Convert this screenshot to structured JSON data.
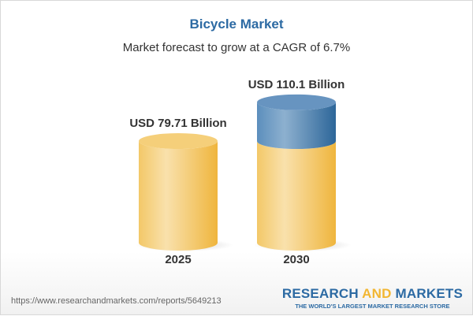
{
  "chart_data": {
    "type": "bar",
    "style": "3d-cylinder",
    "title": "Bicycle Market",
    "subtitle": "Market forecast to grow at a CAGR of 6.7%",
    "categories": [
      "2025",
      "2030"
    ],
    "values": [
      79.71,
      110.1
    ],
    "data_labels": [
      "USD 79.71 Billion",
      "USD 110.1 Billion"
    ],
    "unit": "USD Billion",
    "colors": {
      "base": "#f2c563",
      "growth": "#3a73a8",
      "title": "#2c6aa3"
    }
  },
  "footer": {
    "url": "https://www.researchandmarkets.com/reports/5649213",
    "logo_part1": "RESEARCH ",
    "logo_part2": "AND",
    "logo_part3": " MARKETS",
    "tagline": "THE WORLD'S LARGEST MARKET RESEARCH STORE"
  }
}
